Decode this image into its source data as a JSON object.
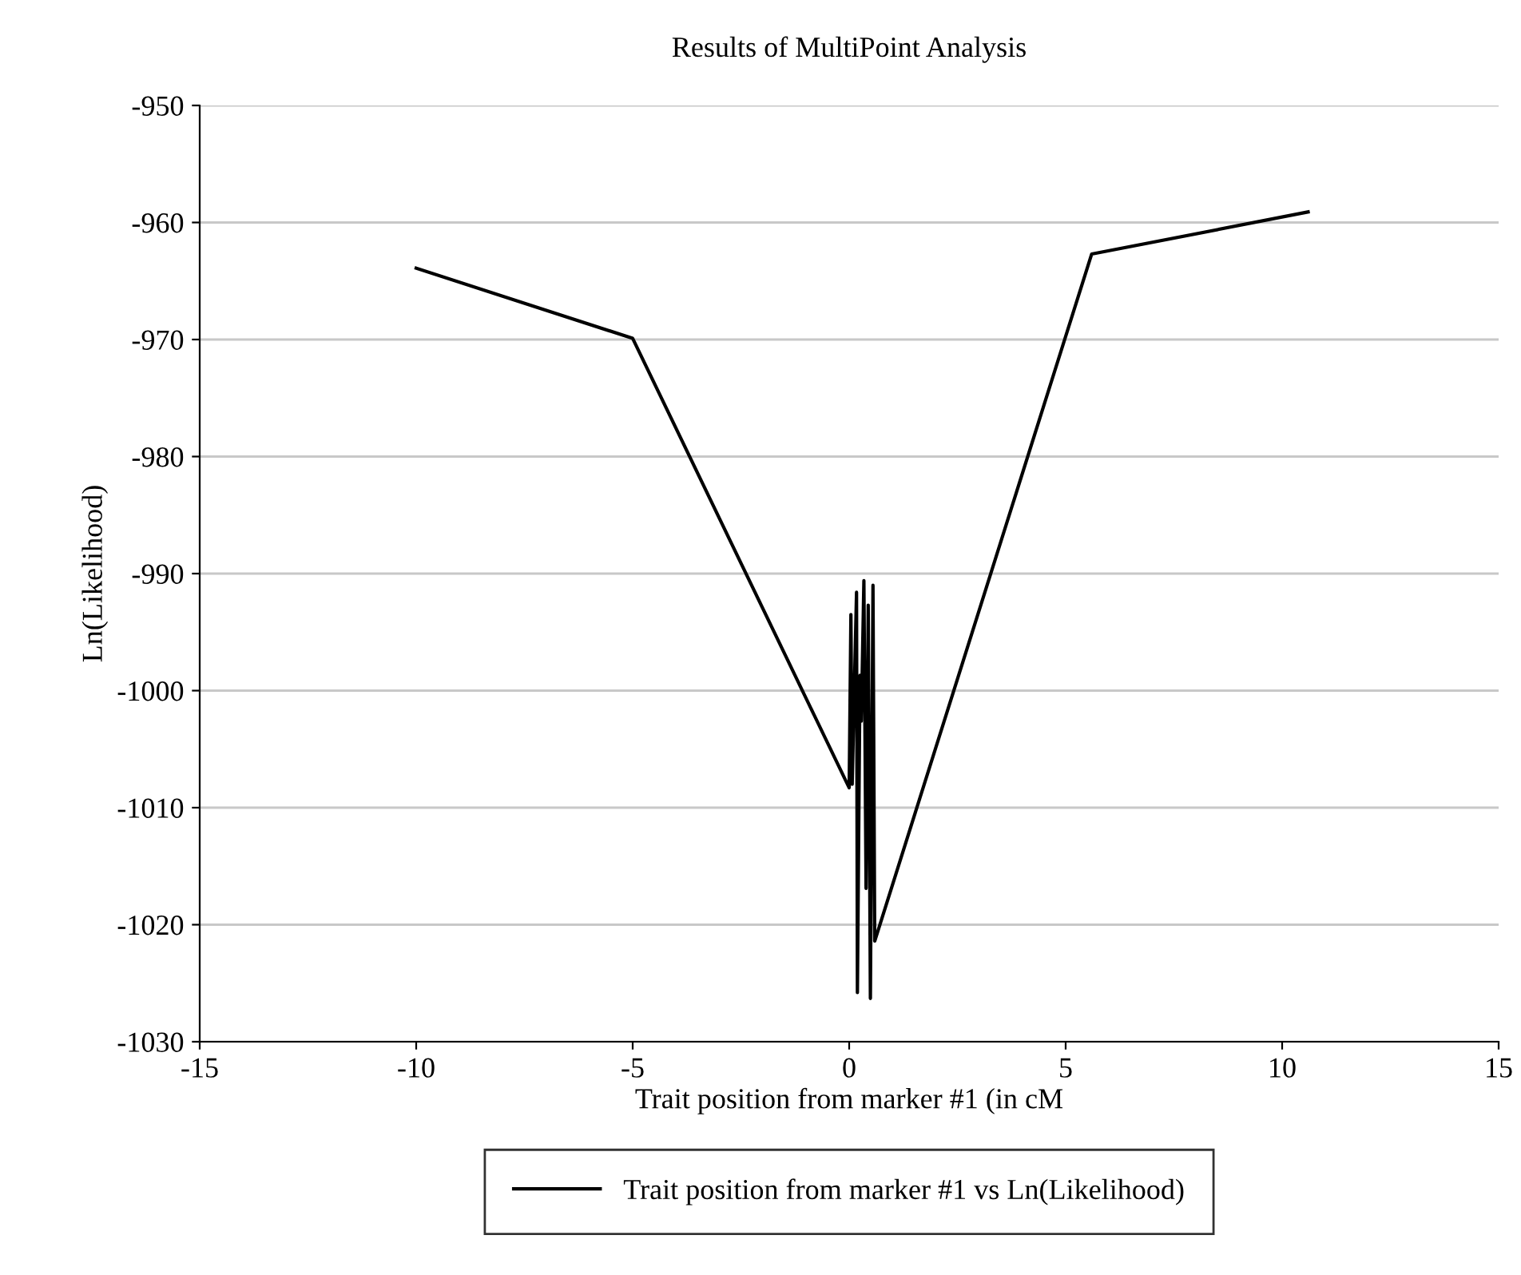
{
  "chart_data": {
    "type": "line",
    "title": "Results of MultiPoint Analysis",
    "xlabel": "Trait position from marker #1 (in cM",
    "ylabel": "Ln(Likelihood)",
    "series": [
      {
        "name": "Trait position from marker #1 vs Ln(Likelihood)",
        "color": "#000000",
        "x": [
          -10,
          -5,
          0,
          0.04,
          0.07,
          0.17,
          0.19,
          0.25,
          0.28,
          0.34,
          0.39,
          0.44,
          0.49,
          0.55,
          0.59,
          5.6,
          10.6
        ],
        "values": [
          -963.9,
          -969.9,
          -1008.3,
          -993.5,
          -1008,
          -991.6,
          -1025.8,
          -998.7,
          -1002.6,
          -990.6,
          -1016.9,
          -992.7,
          -1026.3,
          -991,
          -1021.4,
          -962.7,
          -959.1
        ]
      }
    ],
    "xlim": [
      -15,
      15
    ],
    "xticks": [
      -15,
      -10,
      -5,
      0,
      5,
      10,
      15
    ],
    "ylim": [
      -1030,
      -950
    ],
    "yticks": [
      -1030,
      -1020,
      -1010,
      -1000,
      -990,
      -980,
      -970,
      -960,
      -950
    ],
    "grid": "y",
    "legend": "bottom",
    "marker": "none",
    "line_style": "solid"
  }
}
